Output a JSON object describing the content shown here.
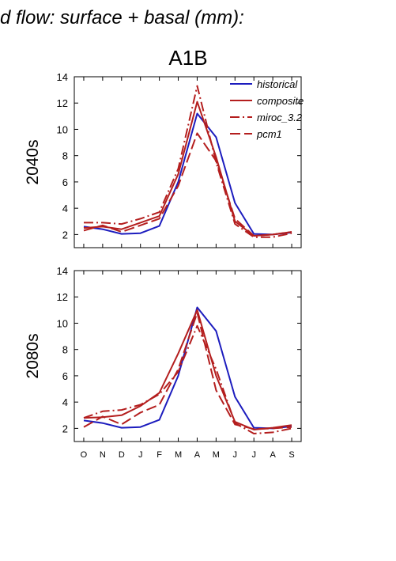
{
  "figure_title": "d flow: surface + basal (mm):",
  "panel_title": "A1B",
  "colors": {
    "historical": "#1c1cbe",
    "model": "#b41e1e"
  },
  "chart_data": [
    {
      "type": "line",
      "ylabel": "2040s",
      "ylim": [
        1,
        14
      ],
      "yticks": [
        2,
        4,
        6,
        8,
        10,
        12,
        14
      ],
      "categories": [
        "O",
        "N",
        "D",
        "J",
        "F",
        "M",
        "A",
        "M",
        "J",
        "J",
        "A",
        "S"
      ],
      "legend": "top-right",
      "series": [
        {
          "name": "historical",
          "style": "solid",
          "color": "#1c1cbe",
          "values": [
            2.6,
            2.4,
            2.05,
            2.1,
            2.65,
            6.0,
            11.2,
            9.4,
            4.4,
            2.05,
            2.0,
            2.15
          ]
        },
        {
          "name": "composite",
          "style": "solid",
          "color": "#b41e1e",
          "values": [
            2.5,
            2.6,
            2.4,
            2.9,
            3.4,
            6.6,
            12.1,
            7.9,
            3.0,
            1.9,
            2.0,
            2.2
          ]
        },
        {
          "name": "miroc_3.2",
          "style": "dashdot",
          "color": "#b41e1e",
          "values": [
            2.9,
            2.9,
            2.8,
            3.2,
            3.7,
            7.0,
            13.3,
            7.5,
            2.8,
            1.8,
            1.8,
            2.1
          ]
        },
        {
          "name": "pcm1",
          "style": "dashed",
          "color": "#b41e1e",
          "values": [
            2.3,
            2.7,
            2.2,
            2.7,
            3.2,
            5.7,
            9.7,
            7.6,
            3.2,
            1.9,
            2.0,
            2.2
          ]
        }
      ]
    },
    {
      "type": "line",
      "ylabel": "2080s",
      "ylim": [
        1,
        14
      ],
      "yticks": [
        2,
        4,
        6,
        8,
        10,
        12,
        14
      ],
      "categories": [
        "O",
        "N",
        "D",
        "J",
        "F",
        "M",
        "A",
        "M",
        "J",
        "J",
        "A",
        "S"
      ],
      "series": [
        {
          "name": "historical",
          "style": "solid",
          "color": "#1c1cbe",
          "values": [
            2.6,
            2.4,
            2.05,
            2.1,
            2.65,
            6.0,
            11.2,
            9.4,
            4.4,
            2.05,
            2.0,
            2.15
          ]
        },
        {
          "name": "composite",
          "style": "solid",
          "color": "#b41e1e",
          "values": [
            2.8,
            2.85,
            3.0,
            3.7,
            4.7,
            7.7,
            11.0,
            6.0,
            2.5,
            1.9,
            2.05,
            2.25
          ]
        },
        {
          "name": "miroc_3.2",
          "style": "dashdot",
          "color": "#b41e1e",
          "values": [
            2.8,
            3.3,
            3.4,
            3.8,
            4.6,
            6.3,
            9.8,
            6.5,
            2.4,
            1.6,
            1.7,
            2.0
          ]
        },
        {
          "name": "pcm1",
          "style": "dashed",
          "color": "#b41e1e",
          "values": [
            2.1,
            2.9,
            2.3,
            3.2,
            3.8,
            6.5,
            10.8,
            4.9,
            2.3,
            1.95,
            2.0,
            2.1
          ]
        }
      ]
    }
  ]
}
